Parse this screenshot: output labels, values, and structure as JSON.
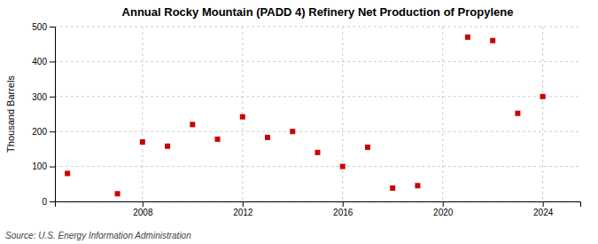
{
  "chart_data": {
    "type": "scatter",
    "title": "Annual Rocky Mountain (PADD 4) Refinery Net Production of Propylene",
    "ylabel": "Thousand Barrels",
    "annotations": [
      "Source: U.S. Energy Information Administration"
    ],
    "x": [
      2005,
      2007,
      2008,
      2009,
      2010,
      2011,
      2012,
      2013,
      2014,
      2015,
      2016,
      2017,
      2018,
      2019,
      2021,
      2022,
      2023,
      2024
    ],
    "values": [
      80,
      22,
      170,
      158,
      220,
      178,
      242,
      183,
      200,
      140,
      100,
      155,
      38,
      45,
      470,
      460,
      252,
      300
    ],
    "color": "#cc0000",
    "marker": "square",
    "xlim": [
      2004.5,
      2025.5
    ],
    "xticks": [
      2008,
      2012,
      2016,
      2020,
      2024
    ],
    "ylim": [
      0,
      500
    ],
    "yticks": [
      0,
      100,
      200,
      300,
      400,
      500
    ],
    "grid": true
  }
}
